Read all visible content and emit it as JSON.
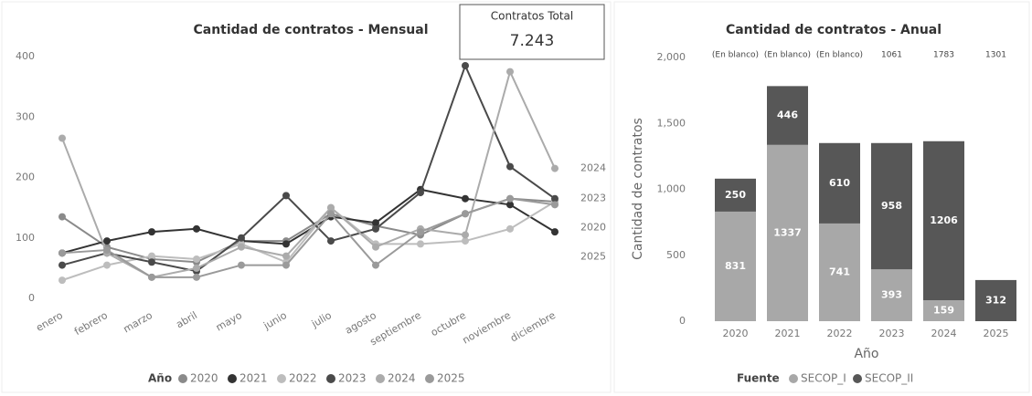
{
  "card": {
    "title": "Contratos Total",
    "value": "7.243"
  },
  "chart_data": [
    {
      "type": "line",
      "title": "Cantidad de contratos - Mensual",
      "categories": [
        "enero",
        "febrero",
        "marzo",
        "abril",
        "mayo",
        "junio",
        "julio",
        "agosto",
        "septiembre",
        "octubre",
        "noviembre",
        "diciembre"
      ],
      "series": [
        {
          "name": "2020",
          "color": "#8a8a8a",
          "end_label": true,
          "values": [
            135,
            85,
            65,
            60,
            95,
            95,
            140,
            120,
            105,
            140,
            165,
            160
          ]
        },
        {
          "name": "2021",
          "color": "#333333",
          "end_label": false,
          "values": [
            75,
            95,
            110,
            115,
            95,
            90,
            135,
            125,
            180,
            165,
            155,
            110
          ]
        },
        {
          "name": "2022",
          "color": "#bdbdbd",
          "end_label": false,
          "values": [
            30,
            55,
            70,
            65,
            90,
            60,
            150,
            90,
            90,
            95,
            115,
            160
          ]
        },
        {
          "name": "2023",
          "color": "#4a4a4a",
          "end_label": true,
          "values": [
            55,
            75,
            60,
            45,
            100,
            170,
            95,
            115,
            175,
            385,
            218,
            165
          ]
        },
        {
          "name": "2024",
          "color": "#ababab",
          "end_label": true,
          "values": [
            265,
            75,
            35,
            50,
            85,
            70,
            150,
            85,
            115,
            105,
            375,
            215
          ]
        },
        {
          "name": "2025",
          "color": "#9a9a9a",
          "end_label": true,
          "values": [
            75,
            80,
            35,
            35,
            55,
            55,
            140,
            55,
            110,
            140,
            165,
            155
          ]
        }
      ],
      "ylim": [
        0,
        400
      ],
      "yticks": [
        0,
        100,
        200,
        300,
        400
      ],
      "legend_title": "Año",
      "legend": "bottom"
    },
    {
      "type": "stacked_bar",
      "title": "Cantidad de contratos - Anual",
      "categories": [
        "2020",
        "2021",
        "2022",
        "2023",
        "2024",
        "2025"
      ],
      "series": [
        {
          "name": "SECOP_I",
          "color": "#a8a8a8",
          "values": [
            831,
            1337,
            741,
            393,
            159,
            null
          ]
        },
        {
          "name": "SECOP_II",
          "color": "#575757",
          "values": [
            250,
            446,
            610,
            958,
            1206,
            312
          ]
        }
      ],
      "top_labels": [
        "(En blanco)",
        "(En blanco)",
        "(En blanco)",
        "1061",
        "1783",
        "1301"
      ],
      "ylim": [
        0,
        2000
      ],
      "yticks": [
        0,
        500,
        {
          "value": 1000,
          "label": "1,000"
        },
        {
          "value": 1500,
          "label": "1,500"
        },
        {
          "value": 2000,
          "label": "2,000"
        }
      ],
      "y_label": "Cantidad de contratos",
      "x_label": "Año",
      "legend_title": "Fuente",
      "legend": "bottom"
    }
  ]
}
